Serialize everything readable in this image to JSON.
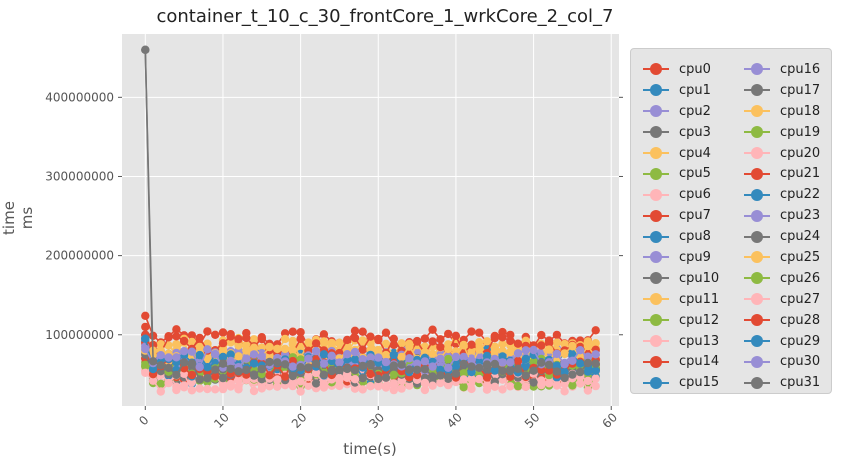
{
  "chart_data": {
    "type": "line",
    "title": "container_t_10_c_30_frontCore_1_wrkCore_2_col_7",
    "xlabel": "time(s)",
    "ylabel": "time ms",
    "xlim": [
      -3,
      61
    ],
    "ylim": [
      10000000,
      480000000
    ],
    "xticks": [
      0,
      10,
      20,
      30,
      40,
      50,
      60
    ],
    "xtick_labels": [
      "0",
      "10",
      "20",
      "30",
      "40",
      "50",
      "60"
    ],
    "yticks": [
      100000000,
      200000000,
      300000000,
      400000000
    ],
    "ytick_labels": [
      "100000000",
      "200000000",
      "300000000",
      "400000000"
    ],
    "grid": true,
    "legend_placement": "right-outside",
    "legend_columns": 2,
    "palette": [
      "#E24A33",
      "#348ABD",
      "#988ED5",
      "#777777",
      "#FBC15E",
      "#8EBA42",
      "#FFB5B8"
    ],
    "x_range": [
      0,
      58
    ],
    "series": [
      {
        "name": "cpu0",
        "start": 124000000,
        "level": 95000000
      },
      {
        "name": "cpu1",
        "start": 100000000,
        "level": 50000000
      },
      {
        "name": "cpu2",
        "start": 90000000,
        "level": 65000000
      },
      {
        "name": "cpu3",
        "start": 460000000,
        "level": 48000000
      },
      {
        "name": "cpu4",
        "start": 85000000,
        "level": 85000000
      },
      {
        "name": "cpu5",
        "start": 60000000,
        "level": 50000000
      },
      {
        "name": "cpu6",
        "start": 55000000,
        "level": 45000000
      },
      {
        "name": "cpu7",
        "start": 110000000,
        "level": 60000000
      },
      {
        "name": "cpu8",
        "start": 96000000,
        "level": 70000000
      },
      {
        "name": "cpu9",
        "start": 80000000,
        "level": 72000000
      },
      {
        "name": "cpu10",
        "start": 70000000,
        "level": 55000000
      },
      {
        "name": "cpu11",
        "start": 75000000,
        "level": 80000000
      },
      {
        "name": "cpu12",
        "start": 65000000,
        "level": 58000000
      },
      {
        "name": "cpu13",
        "start": 58000000,
        "level": 47000000
      },
      {
        "name": "cpu14",
        "start": 70000000,
        "level": 52000000
      },
      {
        "name": "cpu15",
        "start": 92000000,
        "level": 62000000
      },
      {
        "name": "cpu16",
        "start": 88000000,
        "level": 68000000
      },
      {
        "name": "cpu17",
        "start": 100000000,
        "level": 60000000
      },
      {
        "name": "cpu18",
        "start": 78000000,
        "level": 78000000
      },
      {
        "name": "cpu19",
        "start": 62000000,
        "level": 45000000
      },
      {
        "name": "cpu20",
        "start": 55000000,
        "level": 42000000
      },
      {
        "name": "cpu21",
        "start": 90000000,
        "level": 88000000
      },
      {
        "name": "cpu22",
        "start": 95000000,
        "level": 56000000
      },
      {
        "name": "cpu23",
        "start": 85000000,
        "level": 66000000
      },
      {
        "name": "cpu24",
        "start": 75000000,
        "level": 50000000
      },
      {
        "name": "cpu25",
        "start": 80000000,
        "level": 75000000
      },
      {
        "name": "cpu26",
        "start": 60000000,
        "level": 60000000
      },
      {
        "name": "cpu27",
        "start": 52000000,
        "level": 40000000
      },
      {
        "name": "cpu28",
        "start": 100000000,
        "level": 58000000
      },
      {
        "name": "cpu29",
        "start": 95000000,
        "level": 64000000
      },
      {
        "name": "cpu30",
        "start": 82000000,
        "level": 70000000
      },
      {
        "name": "cpu31",
        "start": 460000000,
        "level": 55000000
      }
    ]
  }
}
